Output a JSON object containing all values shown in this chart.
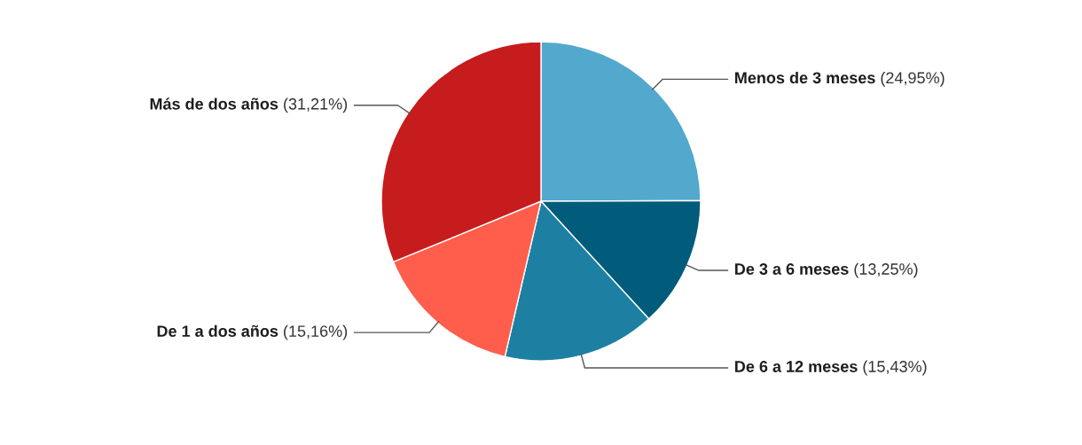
{
  "chart_data": {
    "type": "pie",
    "categories": [
      "Menos de 3 meses",
      "De 3 a 6 meses",
      "De 6 a 12 meses",
      "De 1 a dos años",
      "Más de dos años"
    ],
    "values": [
      24.95,
      13.25,
      15.43,
      15.16,
      31.21
    ],
    "colors": [
      "#52a9cd",
      "#015b7b",
      "#1d80a2",
      "#fe5e4b",
      "#c71c1d"
    ],
    "value_labels": [
      "(24,95%)",
      "(13,25%)",
      "(15,43%)",
      "(15,16%)",
      "(31,21%)"
    ],
    "legend": false
  }
}
